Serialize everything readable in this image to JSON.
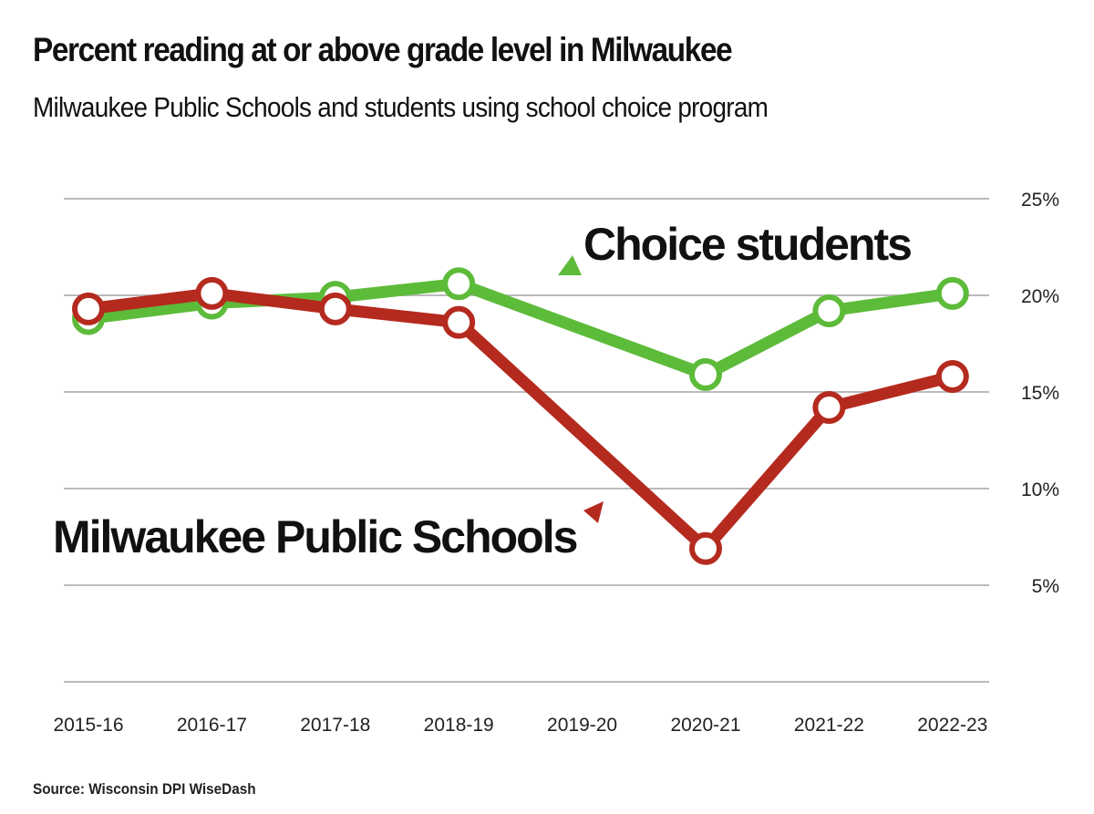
{
  "chart_data": {
    "type": "line",
    "title": "Percent reading at or above grade level in Milwaukee",
    "subtitle": "Milwaukee Public Schools and students using school choice program",
    "source": "Source: Wisconsin DPI WiseDash",
    "categories": [
      "2015-16",
      "2016-17",
      "2017-18",
      "2018-19",
      "2019-20",
      "2020-21",
      "2021-22",
      "2022-23"
    ],
    "y_ticks": [
      {
        "value": 25,
        "label": "25%"
      },
      {
        "value": 20,
        "label": "20%"
      },
      {
        "value": 15,
        "label": "15%"
      },
      {
        "value": 10,
        "label": "10%"
      },
      {
        "value": 5,
        "label": "5%"
      }
    ],
    "ylim": [
      0,
      25
    ],
    "y_axis_side": "right",
    "grid": true,
    "series": [
      {
        "name": "Choice students",
        "color": "#5dbb3a",
        "values": [
          18.8,
          19.6,
          19.9,
          20.6,
          null,
          15.9,
          19.2,
          20.1
        ]
      },
      {
        "name": "Milwaukee Public Schools",
        "color": "#b52a1f",
        "values": [
          19.3,
          20.1,
          19.3,
          18.6,
          null,
          6.9,
          14.2,
          15.8
        ]
      }
    ]
  }
}
